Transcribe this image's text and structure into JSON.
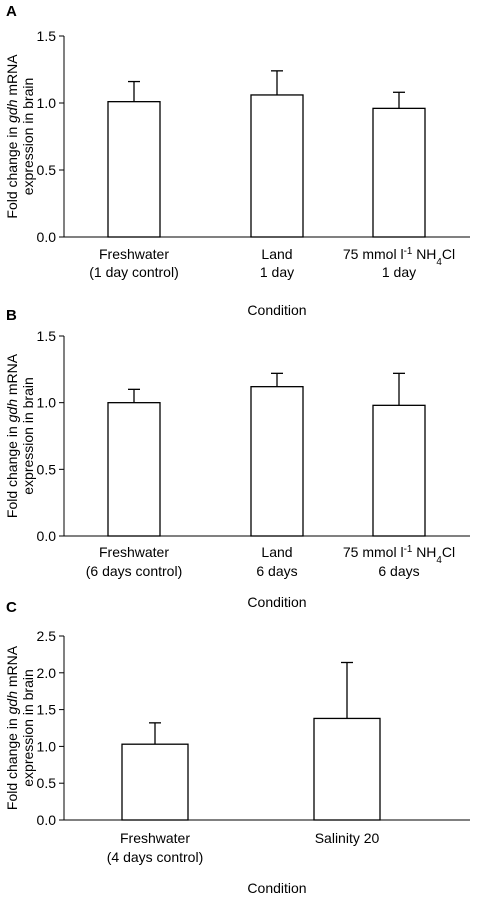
{
  "chart_data": [
    {
      "panel": "A",
      "type": "bar",
      "categories": [
        [
          "Freshwater",
          "(1 day control)"
        ],
        [
          "Land",
          "1 day"
        ],
        [
          "75 mmol l-1 NH4Cl",
          "1 day"
        ]
      ],
      "values": [
        1.01,
        1.06,
        0.96
      ],
      "errors": [
        0.15,
        0.18,
        0.12
      ],
      "title": "",
      "xlabel": "Condition",
      "ylabel": [
        "Fold change in gdh mRNA",
        "expression in brain"
      ],
      "ylim": [
        0,
        1.5
      ],
      "yticks": [
        "0.0",
        "0.5",
        "1.0",
        "1.5"
      ],
      "grid": false
    },
    {
      "panel": "B",
      "type": "bar",
      "categories": [
        [
          "Freshwater",
          "(6 days control)"
        ],
        [
          "Land",
          "6 days"
        ],
        [
          "75 mmol l-1 NH4Cl",
          "6 days"
        ]
      ],
      "values": [
        1.0,
        1.12,
        0.98
      ],
      "errors": [
        0.1,
        0.1,
        0.24
      ],
      "title": "",
      "xlabel": "Condition",
      "ylabel": [
        "Fold change in gdh mRNA",
        "expression in brain"
      ],
      "ylim": [
        0,
        1.5
      ],
      "yticks": [
        "0.0",
        "0.5",
        "1.0",
        "1.5"
      ],
      "grid": false
    },
    {
      "panel": "C",
      "type": "bar",
      "categories": [
        [
          "Freshwater",
          "(4 days control)"
        ],
        [
          "Salinity 20",
          ""
        ]
      ],
      "values": [
        1.03,
        1.38
      ],
      "errors": [
        0.29,
        0.76
      ],
      "title": "",
      "xlabel": "Condition",
      "ylabel": [
        "Fold change in gdh mRNA",
        "expression in brain"
      ],
      "ylim": [
        0,
        2.5
      ],
      "yticks": [
        "0.0",
        "0.5",
        "1.0",
        "1.5",
        "2.0",
        "2.5"
      ],
      "grid": false
    }
  ]
}
